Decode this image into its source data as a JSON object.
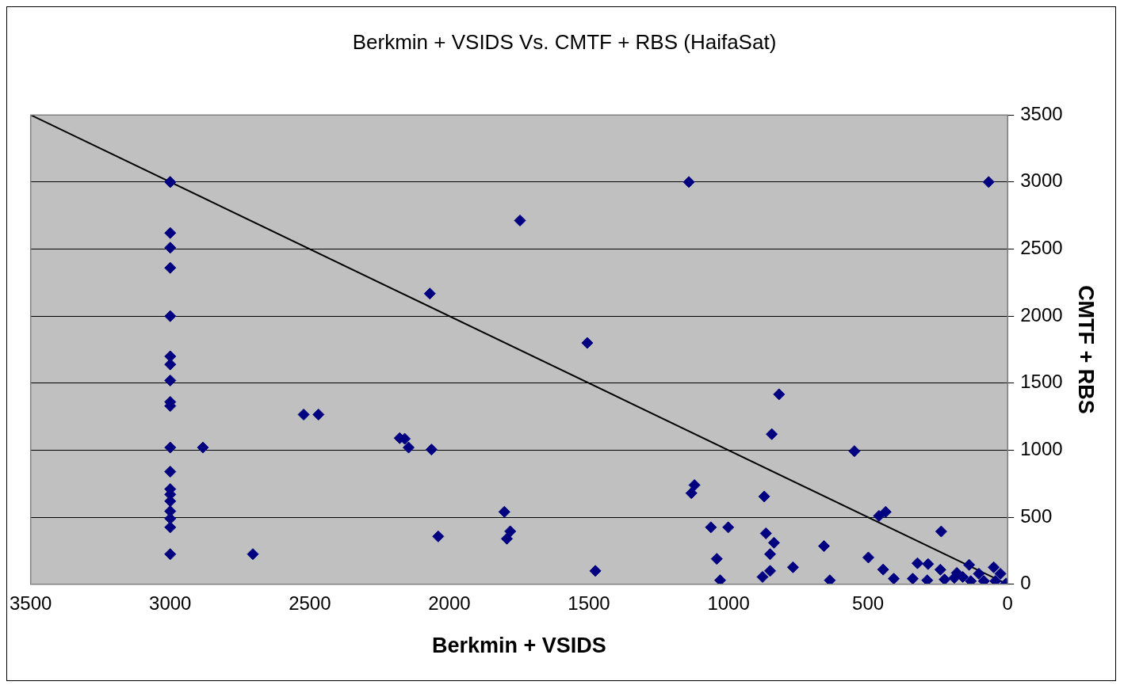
{
  "chart_data": {
    "type": "scatter",
    "title": "Berkmin + VSIDS Vs. CMTF + RBS (HaifaSat)",
    "xlabel": "Berkmin + VSIDS",
    "ylabel": "CMTF + RBS",
    "xlim": [
      3500,
      0
    ],
    "xticks": [
      3500,
      3000,
      2500,
      2000,
      1500,
      1000,
      500,
      0
    ],
    "ylim": [
      0,
      3500
    ],
    "yticks": [
      0,
      500,
      1000,
      1500,
      2000,
      2500,
      3000,
      3500
    ],
    "grid": "y",
    "legend": false,
    "marker": "diamond",
    "series": [
      {
        "color": "#000080",
        "x": [
          3000,
          3000,
          3000,
          3000,
          3000,
          3000,
          3000,
          3000,
          3000,
          3000,
          3000,
          3000,
          3000,
          3000,
          3000,
          3000,
          3000,
          3000,
          3000,
          3000,
          2883,
          2704,
          2522,
          2469,
          2178,
          2160,
          2146,
          2064,
          2040,
          2070,
          1747,
          1506,
          1803,
          1794,
          1782,
          1477,
          1142,
          1133,
          1122,
          1063,
          1001,
          1042,
          1030,
          872,
          866,
          851,
          837,
          845,
          819,
          878,
          851,
          769,
          658,
          637,
          549,
          499,
          461,
          437,
          446,
          408,
          238,
          50,
          323,
          285,
          340,
          288,
          241,
          226,
          182,
          138,
          161,
          103,
          85,
          26,
          44,
          6,
          132,
          191,
          68
        ],
        "values": [
          3000,
          3000,
          2620,
          2510,
          2360,
          2000,
          1700,
          1640,
          1520,
          1360,
          1330,
          1020,
          840,
          710,
          670,
          620,
          545,
          490,
          425,
          225,
          1020,
          225,
          1266,
          1266,
          1090,
          1085,
          1020,
          1005,
          357,
          2168,
          2713,
          1800,
          540,
          340,
          395,
          100,
          3000,
          680,
          740,
          425,
          425,
          190,
          30,
          655,
          380,
          225,
          310,
          1120,
          1417,
          55,
          100,
          127,
          285,
          30,
          993,
          200,
          510,
          540,
          110,
          42,
          394,
          127,
          157,
          151,
          42,
          30,
          109,
          36,
          85,
          145,
          55,
          79,
          24,
          79,
          24,
          6,
          24,
          48,
          3000
        ]
      },
      {
        "type": "line",
        "color": "#000000",
        "marker": "none",
        "x": [
          3500,
          0
        ],
        "values": [
          3500,
          0
        ]
      }
    ]
  }
}
